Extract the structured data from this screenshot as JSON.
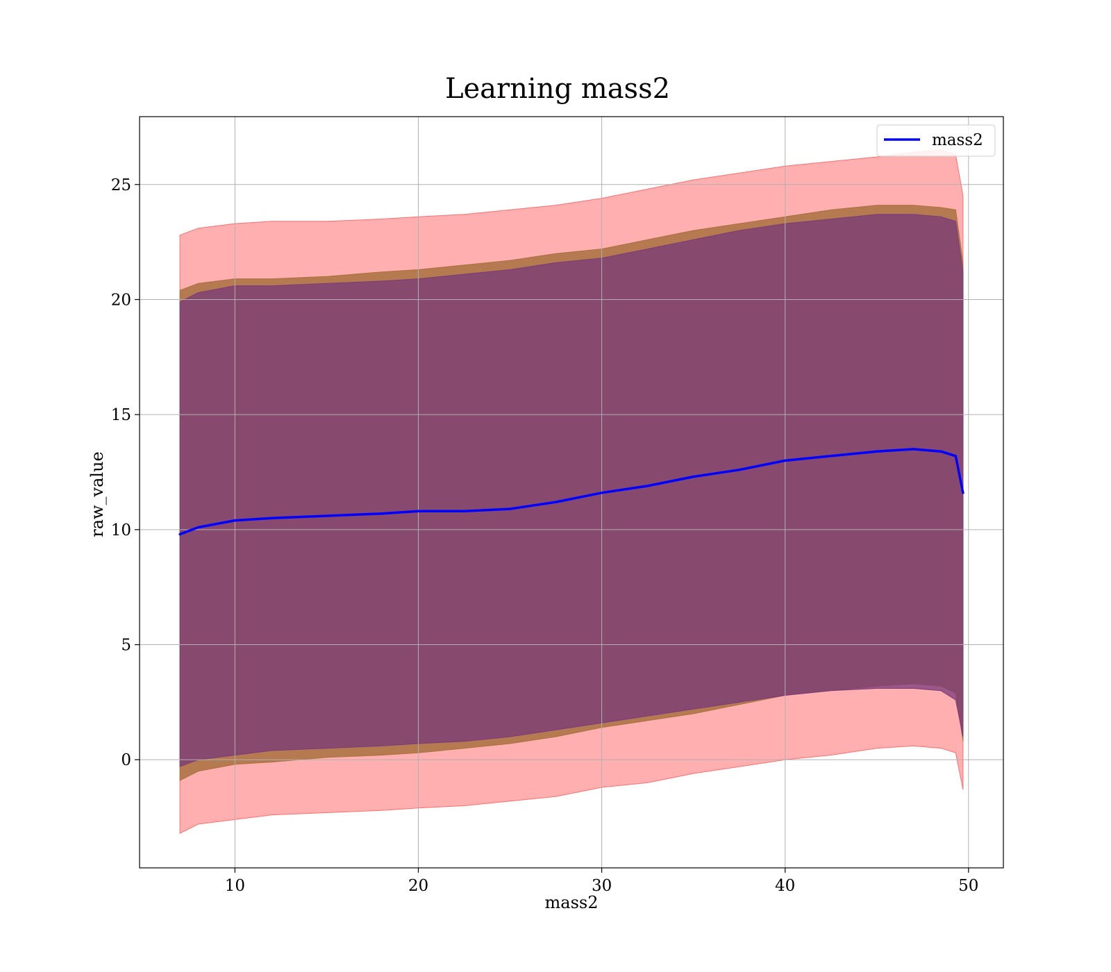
{
  "chart_data": {
    "type": "line",
    "title": "Learning mass2",
    "xlabel": "mass2",
    "ylabel": "raw_value",
    "xlim": [
      4.8,
      51.9
    ],
    "ylim": [
      -4.7,
      27.95
    ],
    "xticks": [
      10,
      20,
      30,
      40,
      50
    ],
    "yticks": [
      0,
      5,
      10,
      15,
      20,
      25
    ],
    "grid": true,
    "legend_position": "upper right",
    "colors": {
      "line": "#0000ff",
      "outer_band": "#ff6e6e",
      "middle_band": "#a8713f",
      "inner_band": "#7a3a7a",
      "grid": "#b0b0b0"
    },
    "series": [
      {
        "name": "mass2",
        "kind": "line",
        "x": [
          7.0,
          8.0,
          10.0,
          12.0,
          15.0,
          18.0,
          20.0,
          22.5,
          25.0,
          27.5,
          30.0,
          32.5,
          35.0,
          37.5,
          40.0,
          42.5,
          45.0,
          47.0,
          48.5,
          49.3,
          49.7
        ],
        "y": [
          9.8,
          10.1,
          10.4,
          10.5,
          10.6,
          10.7,
          10.8,
          10.8,
          10.9,
          11.2,
          11.6,
          11.9,
          12.3,
          12.6,
          13.0,
          13.2,
          13.4,
          13.5,
          13.4,
          13.2,
          11.6
        ]
      }
    ],
    "bands": [
      {
        "name": "outer",
        "x": [
          7.0,
          8.0,
          10.0,
          12.0,
          15.0,
          18.0,
          20.0,
          22.5,
          25.0,
          27.5,
          30.0,
          32.5,
          35.0,
          37.5,
          40.0,
          42.5,
          45.0,
          47.0,
          48.5,
          49.3,
          49.7
        ],
        "lower": [
          -3.2,
          -2.8,
          -2.6,
          -2.4,
          -2.3,
          -2.2,
          -2.1,
          -2.0,
          -1.8,
          -1.6,
          -1.2,
          -1.0,
          -0.6,
          -0.3,
          0.0,
          0.2,
          0.5,
          0.6,
          0.5,
          0.3,
          -1.3
        ],
        "upper": [
          22.8,
          23.1,
          23.3,
          23.4,
          23.4,
          23.5,
          23.6,
          23.7,
          23.9,
          24.1,
          24.4,
          24.8,
          25.2,
          25.5,
          25.8,
          26.0,
          26.2,
          26.4,
          26.5,
          26.3,
          24.5
        ]
      },
      {
        "name": "middle",
        "x": [
          7.0,
          8.0,
          10.0,
          12.0,
          15.0,
          18.0,
          20.0,
          22.5,
          25.0,
          27.5,
          30.0,
          32.5,
          35.0,
          37.5,
          40.0,
          42.5,
          45.0,
          47.0,
          48.5,
          49.3,
          49.7
        ],
        "lower": [
          -0.9,
          -0.5,
          -0.2,
          -0.1,
          0.1,
          0.2,
          0.3,
          0.5,
          0.7,
          1.0,
          1.4,
          1.7,
          2.0,
          2.4,
          2.8,
          3.0,
          3.2,
          3.3,
          3.2,
          2.9,
          0.8
        ],
        "upper": [
          20.4,
          20.7,
          20.9,
          20.9,
          21.0,
          21.2,
          21.3,
          21.5,
          21.7,
          22.0,
          22.2,
          22.6,
          23.0,
          23.3,
          23.6,
          23.9,
          24.1,
          24.1,
          24.0,
          23.9,
          21.6
        ]
      },
      {
        "name": "inner",
        "x": [
          7.0,
          8.0,
          10.0,
          12.0,
          15.0,
          18.0,
          20.0,
          22.5,
          25.0,
          27.5,
          30.0,
          32.5,
          35.0,
          37.5,
          40.0,
          42.5,
          45.0,
          47.0,
          48.5,
          49.3,
          49.7
        ],
        "lower": [
          -0.3,
          0.0,
          0.2,
          0.4,
          0.5,
          0.6,
          0.7,
          0.8,
          1.0,
          1.3,
          1.6,
          1.9,
          2.2,
          2.5,
          2.8,
          3.0,
          3.1,
          3.1,
          3.0,
          2.6,
          1.0
        ],
        "upper": [
          19.9,
          20.3,
          20.6,
          20.6,
          20.7,
          20.8,
          20.9,
          21.1,
          21.3,
          21.6,
          21.8,
          22.2,
          22.6,
          23.0,
          23.3,
          23.5,
          23.7,
          23.7,
          23.6,
          23.4,
          21.2
        ]
      }
    ]
  }
}
